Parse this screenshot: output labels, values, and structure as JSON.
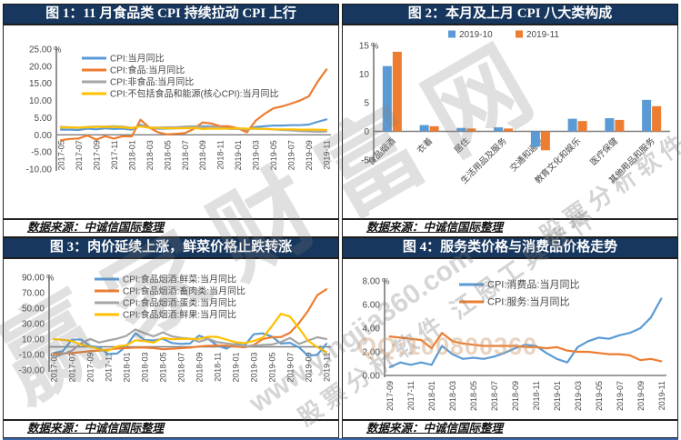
{
  "page": {
    "source_label": "数据来源：中诚信国际整理",
    "watermarks": {
      "brand_large": "赢家财富网",
      "software_line": "股票分析软件 江恩工具软件",
      "website": "www.yingjia360.com",
      "qq": "QQ:100800360"
    },
    "colors": {
      "title_bar": "#17375E",
      "series_blue": "#5B9BD5",
      "series_orange": "#ED7D31",
      "series_gray": "#A5A5A5",
      "series_yellow": "#FFC000",
      "bottom_rule": "#3A66AD"
    }
  },
  "chart_data": [
    {
      "id": "fig1",
      "type": "line",
      "title": "图 1：11 月食品类 CPI 持续拉动 CPI 上行",
      "y_unit": "%",
      "ylim": [
        -10,
        25
      ],
      "ytick_step": 5,
      "yticks": [
        "25.00",
        "20.00",
        "15.00",
        "10.00",
        "5.00",
        "0.00",
        "-5.00",
        "-10.00"
      ],
      "x": [
        "2017-05",
        "2017-06",
        "2017-07",
        "2017-08",
        "2017-09",
        "2017-10",
        "2017-11",
        "2017-12",
        "2018-01",
        "2018-02",
        "2018-03",
        "2018-04",
        "2018-05",
        "2018-06",
        "2018-07",
        "2018-08",
        "2018-09",
        "2018-10",
        "2018-11",
        "2018-12",
        "2019-01",
        "2019-02",
        "2019-03",
        "2019-04",
        "2019-05",
        "2019-06",
        "2019-07",
        "2019-08",
        "2019-09",
        "2019-10",
        "2019-11"
      ],
      "x_ticks": [
        "2017-05",
        "2017-07",
        "2017-09",
        "2017-11",
        "2018-01",
        "2018-03",
        "2018-05",
        "2018-07",
        "2018-09",
        "2018-11",
        "2019-01",
        "2019-03",
        "2019-05",
        "2019-07",
        "2019-09",
        "2019-11"
      ],
      "series": [
        {
          "name": "CPI:当月同比",
          "color": "#5B9BD5",
          "values": [
            1.5,
            1.5,
            1.4,
            1.8,
            1.6,
            1.9,
            1.7,
            1.8,
            1.5,
            2.9,
            2.1,
            1.8,
            1.8,
            1.9,
            2.1,
            2.3,
            2.5,
            2.5,
            2.2,
            1.9,
            1.7,
            1.5,
            2.3,
            2.5,
            2.7,
            2.7,
            2.8,
            2.8,
            3.0,
            3.8,
            4.5
          ]
        },
        {
          "name": "CPI:食品:当月同比",
          "color": "#ED7D31",
          "values": [
            -1.6,
            -1.2,
            -1.1,
            -0.2,
            -1.4,
            -0.4,
            -1.1,
            -0.4,
            -0.5,
            4.4,
            2.1,
            0.7,
            0.1,
            0.3,
            0.5,
            1.7,
            3.6,
            3.3,
            2.5,
            2.5,
            1.9,
            0.7,
            4.1,
            6.1,
            7.7,
            8.3,
            9.1,
            10.0,
            11.2,
            15.5,
            19.1
          ]
        },
        {
          "name": "CPI:非食品:当月同比",
          "color": "#A5A5A5",
          "values": [
            2.3,
            2.2,
            2.0,
            2.3,
            2.4,
            2.4,
            2.5,
            2.4,
            2.0,
            2.5,
            2.1,
            2.1,
            2.2,
            2.2,
            2.4,
            2.5,
            2.2,
            2.4,
            2.1,
            1.7,
            1.7,
            1.7,
            1.8,
            1.7,
            1.6,
            1.4,
            1.3,
            1.1,
            1.0,
            0.9,
            1.0
          ]
        },
        {
          "name": "CPI:不包括食品和能源(核心CPI):当月同比",
          "color": "#FFC000",
          "values": [
            2.1,
            2.2,
            2.1,
            2.2,
            2.3,
            2.3,
            2.3,
            2.2,
            1.9,
            2.5,
            2.0,
            2.0,
            1.9,
            1.9,
            1.9,
            2.0,
            1.7,
            1.8,
            1.8,
            1.8,
            1.9,
            1.8,
            1.8,
            1.7,
            1.6,
            1.6,
            1.6,
            1.5,
            1.5,
            1.5,
            1.4
          ]
        }
      ]
    },
    {
      "id": "fig2",
      "type": "bar",
      "title": "图 2：本月及上月 CPI 八大类构成",
      "y_unit": "%",
      "ylim": [
        -5,
        15
      ],
      "ytick_step": 5,
      "yticks": [
        "15",
        "10",
        "5",
        "0",
        "-5"
      ],
      "categories": [
        "食品烟酒",
        "衣着",
        "居住",
        "生活用品及服务",
        "交通和通信",
        "教育文化和娱乐",
        "医疗保健",
        "其他用品和服务"
      ],
      "series": [
        {
          "name": "2019-10",
          "color": "#5B9BD5",
          "values": [
            11.4,
            1.1,
            0.6,
            0.7,
            -2.7,
            2.2,
            2.3,
            5.5
          ]
        },
        {
          "name": "2019-11",
          "color": "#ED7D31",
          "values": [
            13.9,
            0.9,
            0.5,
            0.5,
            -3.3,
            1.8,
            2.0,
            4.4
          ]
        }
      ]
    },
    {
      "id": "fig3",
      "type": "line",
      "title": "图 3：肉价延续上涨，鲜菜价格止跌转涨",
      "y_unit": "%",
      "ylim": [
        -30,
        90
      ],
      "ytick_step": 20,
      "yticks": [
        "90.00",
        "70.00",
        "50.00",
        "30.00",
        "10.00",
        "-10.00",
        "-30.00"
      ],
      "x": [
        "2017-05",
        "2017-06",
        "2017-07",
        "2017-08",
        "2017-09",
        "2017-10",
        "2017-11",
        "2017-12",
        "2018-01",
        "2018-02",
        "2018-03",
        "2018-04",
        "2018-05",
        "2018-06",
        "2018-07",
        "2018-08",
        "2018-09",
        "2018-10",
        "2018-11",
        "2018-12",
        "2019-01",
        "2019-02",
        "2019-03",
        "2019-04",
        "2019-05",
        "2019-06",
        "2019-07",
        "2019-08",
        "2019-09",
        "2019-10",
        "2019-11"
      ],
      "x_ticks": [
        "2017-05",
        "2017-07",
        "2017-09",
        "2017-11",
        "2018-01",
        "2018-03",
        "2018-05",
        "2018-07",
        "2018-09",
        "2018-11",
        "2019-01",
        "2019-03",
        "2019-05",
        "2019-07",
        "2019-09",
        "2019-11"
      ],
      "series": [
        {
          "name": "CPI:食品烟酒:鲜菜:当月同比",
          "color": "#5B9BD5",
          "values": [
            -8.0,
            -5.6,
            9.0,
            9.7,
            1.0,
            -0.5,
            -9.5,
            -8.6,
            1.0,
            17.7,
            8.8,
            8.2,
            10.3,
            5.0,
            3.8,
            4.3,
            14.6,
            10.1,
            1.5,
            -2.3,
            3.8,
            1.7,
            16.2,
            17.4,
            13.3,
            4.2,
            5.2,
            -0.8,
            -11.8,
            -10.2,
            3.9
          ]
        },
        {
          "name": "CPI:食品烟酒:畜肉类:当月同比",
          "color": "#ED7D31",
          "values": [
            -9.3,
            -8.7,
            -8.0,
            -6.9,
            -5.6,
            -4.8,
            -3.6,
            -2.2,
            -1.6,
            -0.9,
            -1.1,
            -1.7,
            -3.2,
            -2.6,
            -1.8,
            -0.9,
            0.5,
            1.3,
            1.6,
            1.5,
            0.4,
            -0.6,
            2.3,
            10.1,
            12.5,
            12.6,
            18.2,
            30.9,
            46.9,
            66.8,
            74.5
          ]
        },
        {
          "name": "CPI:食品烟酒:蛋类:当月同比",
          "color": "#A5A5A5",
          "values": [
            -14.4,
            -9.3,
            -5.0,
            4.3,
            10.2,
            5.5,
            8.2,
            10.6,
            14.2,
            22.5,
            17.6,
            13.5,
            18.7,
            13.7,
            11.7,
            10.6,
            6.6,
            10.2,
            6.0,
            4.5,
            2.8,
            0.9,
            1.5,
            2.6,
            3.0,
            6.4,
            11.4,
            3.8,
            8.2,
            12.3,
            10.1
          ]
        },
        {
          "name": "CPI:食品烟酒:鲜果:当月同比",
          "color": "#FFC000",
          "values": [
            10.0,
            9.0,
            7.5,
            3.0,
            0.2,
            -3.4,
            -5.0,
            0.6,
            2.0,
            8.5,
            7.4,
            5.5,
            11.5,
            9.9,
            10.1,
            10.4,
            10.2,
            13.1,
            12.8,
            9.4,
            5.9,
            4.8,
            7.7,
            11.9,
            26.7,
            42.7,
            39.1,
            24.0,
            7.7,
            -0.3,
            -6.8
          ]
        }
      ]
    },
    {
      "id": "fig4",
      "type": "line",
      "title": "图 4：服务类价格与消费品价格走势",
      "y_unit": "%",
      "ylim": [
        0,
        8
      ],
      "ytick_step": 2,
      "yticks": [
        "8.00",
        "6.00",
        "4.00",
        "2.00",
        "0.00"
      ],
      "x": [
        "2017-09",
        "2017-10",
        "2017-11",
        "2017-12",
        "2018-01",
        "2018-02",
        "2018-03",
        "2018-04",
        "2018-05",
        "2018-06",
        "2018-07",
        "2018-08",
        "2018-09",
        "2018-10",
        "2018-11",
        "2018-12",
        "2019-01",
        "2019-02",
        "2019-03",
        "2019-04",
        "2019-05",
        "2019-06",
        "2019-07",
        "2019-08",
        "2019-09",
        "2019-10",
        "2019-11"
      ],
      "x_ticks": [
        "2017-09",
        "2017-11",
        "2018-01",
        "2018-03",
        "2018-05",
        "2018-07",
        "2018-09",
        "2018-11",
        "2019-01",
        "2019-03",
        "2019-05",
        "2019-07",
        "2019-09",
        "2019-11"
      ],
      "series": [
        {
          "name": "CPI:消费品:当月同比",
          "color": "#5B9BD5",
          "values": [
            0.7,
            1.1,
            0.9,
            1.1,
            0.9,
            2.5,
            1.8,
            1.4,
            1.5,
            1.4,
            1.6,
            1.9,
            2.3,
            2.6,
            2.5,
            1.9,
            1.4,
            1.1,
            2.4,
            2.9,
            3.2,
            3.1,
            3.4,
            3.6,
            4.0,
            4.9,
            6.5
          ]
        },
        {
          "name": "CPI:服务:当月同比",
          "color": "#ED7D31",
          "values": [
            3.3,
            3.2,
            3.1,
            3.0,
            2.3,
            3.6,
            2.9,
            2.7,
            2.6,
            2.5,
            2.5,
            2.5,
            2.5,
            2.4,
            2.4,
            2.3,
            2.4,
            2.1,
            2.0,
            2.0,
            1.9,
            1.8,
            1.8,
            1.7,
            1.3,
            1.4,
            1.2
          ]
        }
      ]
    }
  ]
}
